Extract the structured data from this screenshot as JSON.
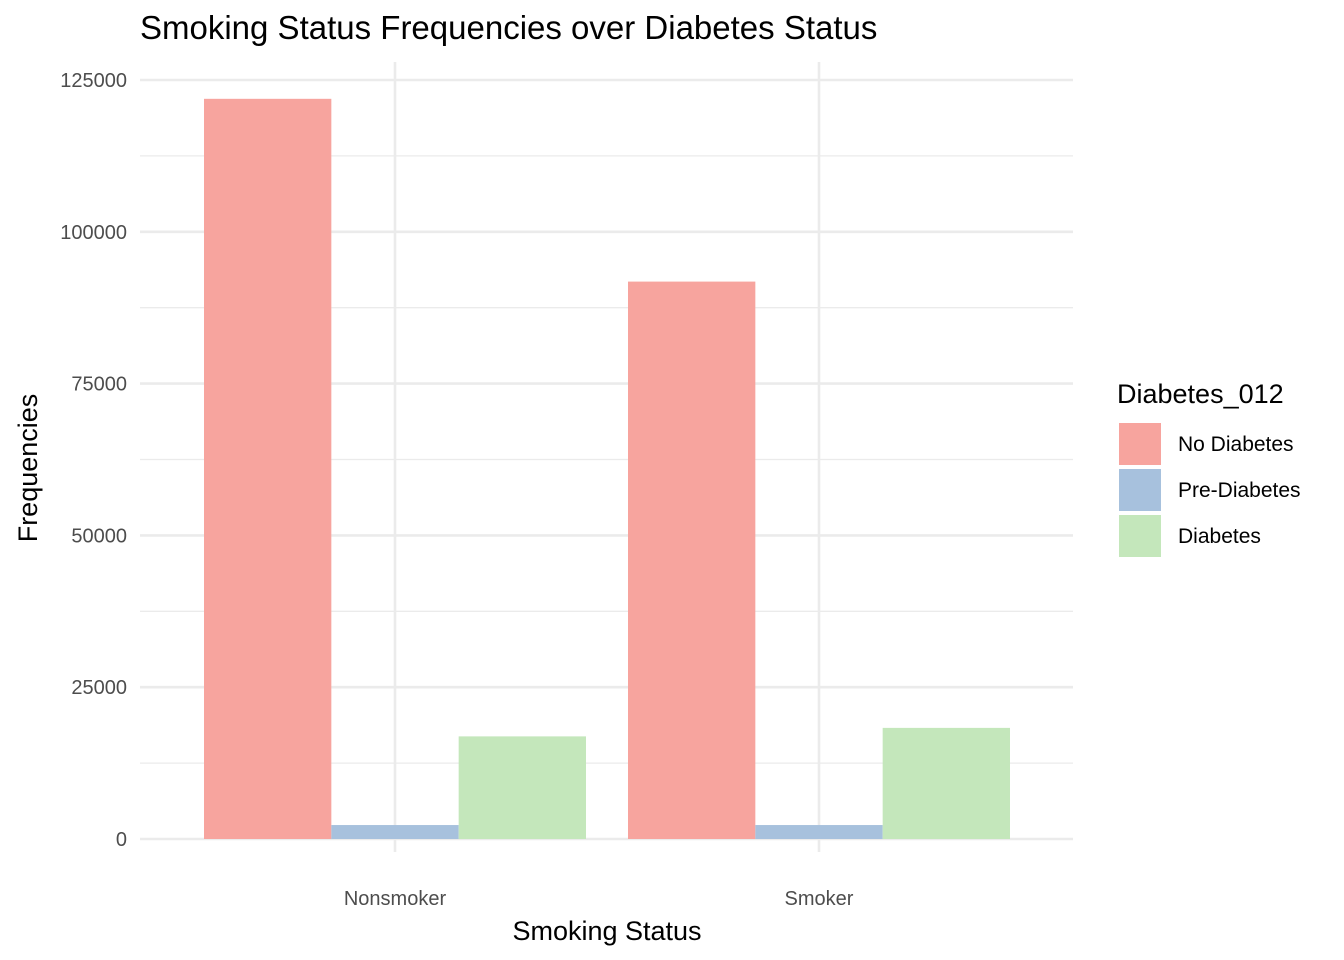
{
  "chart_data": {
    "type": "bar",
    "title": "Smoking Status Frequencies over Diabetes Status",
    "xlabel": "Smoking Status",
    "ylabel": "Frequencies",
    "categories": [
      "Nonsmoker",
      "Smoker"
    ],
    "series": [
      {
        "name": "No Diabetes",
        "color": "#f7a49e",
        "values": [
          121900,
          91800
        ]
      },
      {
        "name": "Pre-Diabetes",
        "color": "#a7c1dd",
        "values": [
          2300,
          2300
        ]
      },
      {
        "name": "Diabetes",
        "color": "#c4e7bb",
        "values": [
          16900,
          18300
        ]
      }
    ],
    "ylim": [
      0,
      128000
    ],
    "y_ticks": [
      0,
      25000,
      50000,
      75000,
      100000,
      125000
    ],
    "y_tick_labels": [
      "0",
      "25000",
      "50000",
      "75000",
      "100000",
      "125000"
    ],
    "legend": {
      "title": "Diabetes_012",
      "placement": "right"
    },
    "grid": true
  }
}
